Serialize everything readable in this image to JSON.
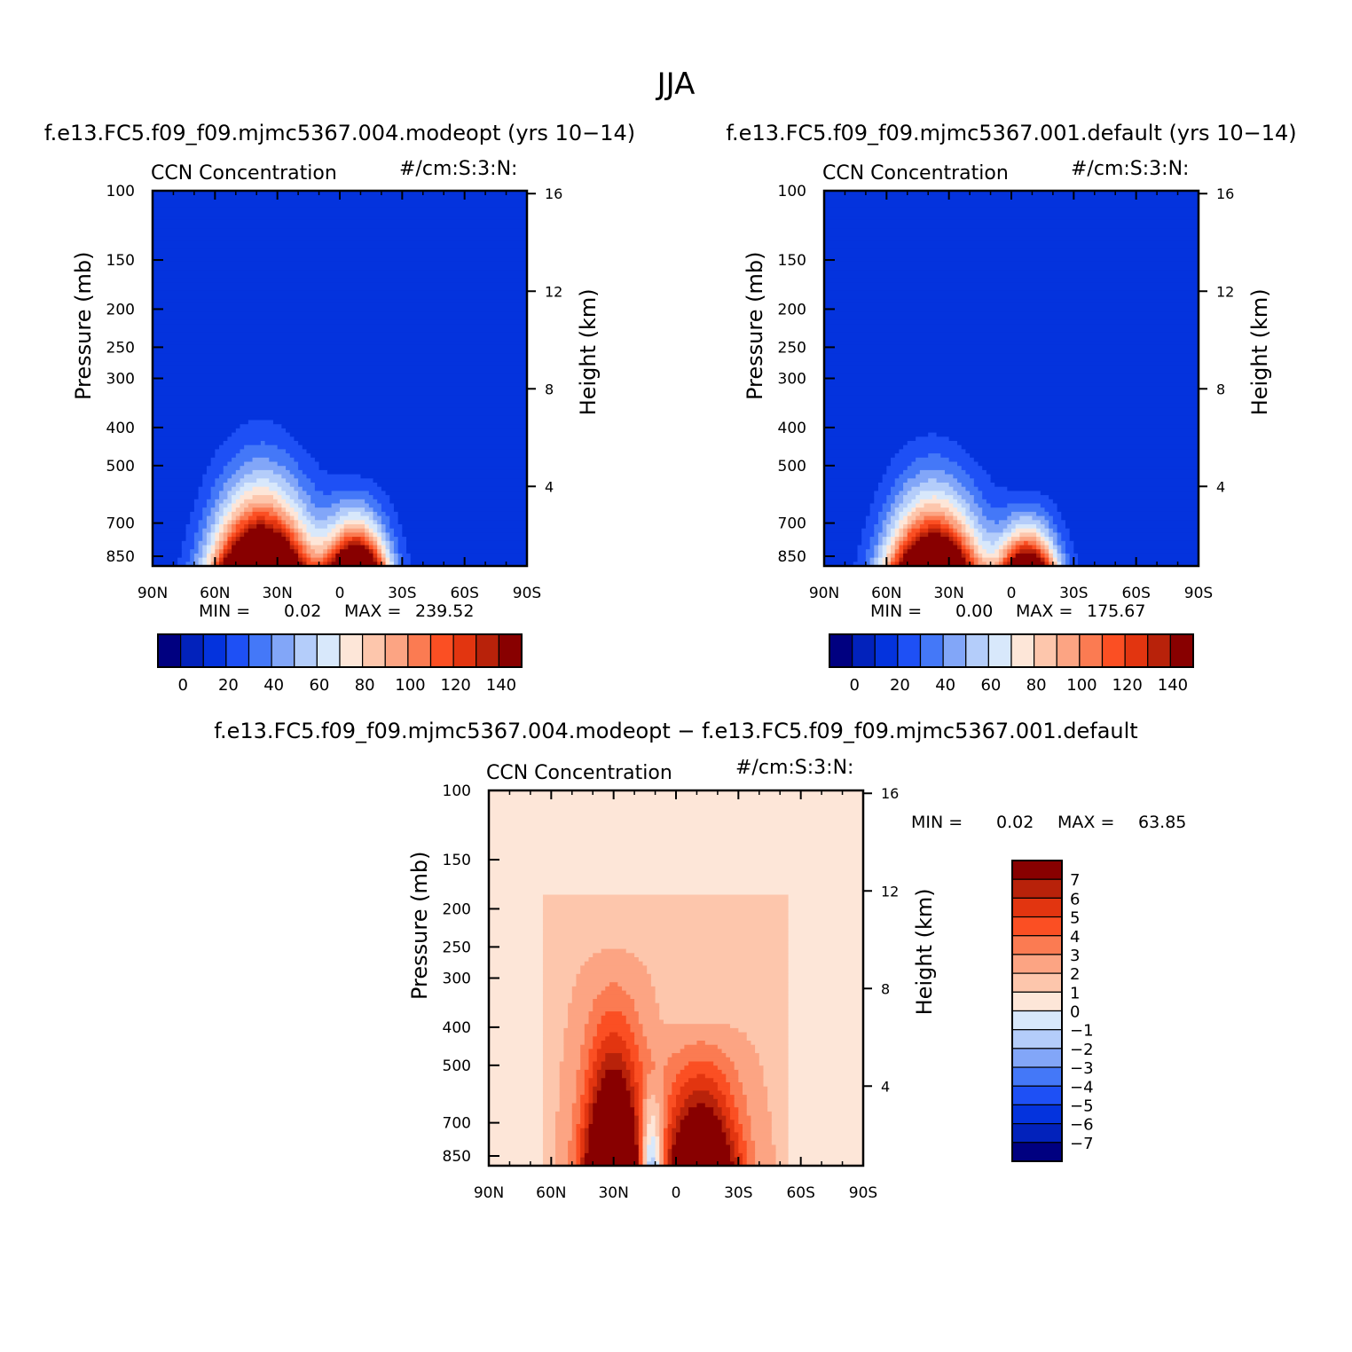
{
  "figure": {
    "season_title": "JJA",
    "panels": [
      {
        "title": "f.e13.FC5.f09_f09.mjmc5367.004.modeopt (yrs 10−14)",
        "variable": "CCN Concentration",
        "units": "#/cm:S:3:N:",
        "min_label": "MIN =",
        "min_value": "0.02",
        "max_label": "MAX =",
        "max_value": "239.52",
        "cb_ticks": [
          "0",
          "20",
          "40",
          "60",
          "80",
          "100",
          "120",
          "140"
        ],
        "peaks": [
          {
            "lat": 38,
            "top_p": 230,
            "amp": 1.0,
            "lat_width": 22
          },
          {
            "lat": -8,
            "top_p": 430,
            "amp": 0.8,
            "lat_width": 14
          }
        ]
      },
      {
        "title": "f.e13.FC5.f09_f09.mjmc5367.001.default (yrs 10−14)",
        "variable": "CCN Concentration",
        "units": "#/cm:S:3:N:",
        "min_label": "MIN =",
        "min_value": "0.00",
        "max_label": "MAX =",
        "max_value": "175.67",
        "cb_ticks": [
          "0",
          "20",
          "40",
          "60",
          "80",
          "100",
          "120",
          "140"
        ],
        "peaks": [
          {
            "lat": 38,
            "top_p": 265,
            "amp": 0.9,
            "lat_width": 21
          },
          {
            "lat": -8,
            "top_p": 490,
            "amp": 0.7,
            "lat_width": 13
          }
        ]
      },
      {
        "title": "f.e13.FC5.f09_f09.mjmc5367.004.modeopt − f.e13.FC5.f09_f09.mjmc5367.001.default",
        "variable": "CCN Concentration",
        "units": "#/cm:S:3:N:",
        "min_label": "MIN =",
        "min_value": "0.02",
        "max_label": "MAX =",
        "max_value": "63.85",
        "cb_ticks": [
          "7",
          "6",
          "5",
          "4",
          "3",
          "2",
          "1",
          "0",
          "−1",
          "−2",
          "−3",
          "−4",
          "−5",
          "−6",
          "−7"
        ]
      }
    ],
    "axes": {
      "x_ticks": [
        "90N",
        "60N",
        "30N",
        "0",
        "30S",
        "60S",
        "90S"
      ],
      "x_values": [
        90,
        60,
        30,
        0,
        -30,
        -60,
        -90
      ],
      "y_label": "Pressure (mb)",
      "y_ticks": [
        "100",
        "150",
        "200",
        "250",
        "300",
        "400",
        "500",
        "700",
        "850"
      ],
      "y_values": [
        100,
        150,
        200,
        250,
        300,
        400,
        500,
        700,
        850
      ],
      "y2_label": "Height (km)",
      "y2_ticks": [
        "16",
        "12",
        "8",
        "4"
      ],
      "y2_values": [
        16,
        12,
        8,
        4
      ]
    }
  },
  "chart_data": [
    {
      "type": "heatmap",
      "title": "f.e13.FC5.f09_f09.mjmc5367.004.modeopt (yrs 10−14)",
      "subtitle": "CCN Concentration  #/cm:S:3:N:",
      "xlabel": "",
      "ylabel": "Pressure (mb)",
      "y2label": "Height (km)",
      "xlim": [
        90,
        -90
      ],
      "ylim": [
        900,
        100
      ],
      "y_scale": "log",
      "contour_levels": [
        -5,
        0,
        10,
        20,
        30,
        40,
        50,
        60,
        70,
        80,
        90,
        100,
        110,
        120,
        130,
        140
      ],
      "colors": [
        "#000080",
        "#0222bb",
        "#0433dd",
        "#1e50f5",
        "#4478f8",
        "#82a6f8",
        "#b4cdfa",
        "#d8e8fb",
        "#fde6d8",
        "#fdc6ac",
        "#fca483",
        "#fb7b52",
        "#fb4f23",
        "#e23510",
        "#b8220a",
        "#880000"
      ],
      "min": 0.02,
      "max": 239.52
    },
    {
      "type": "heatmap",
      "title": "f.e13.FC5.f09_f09.mjmc5367.001.default (yrs 10−14)",
      "subtitle": "CCN Concentration  #/cm:S:3:N:",
      "xlabel": "",
      "ylabel": "Pressure (mb)",
      "y2label": "Height (km)",
      "xlim": [
        90,
        -90
      ],
      "ylim": [
        900,
        100
      ],
      "y_scale": "log",
      "contour_levels": [
        -5,
        0,
        10,
        20,
        30,
        40,
        50,
        60,
        70,
        80,
        90,
        100,
        110,
        120,
        130,
        140
      ],
      "colors": [
        "#000080",
        "#0222bb",
        "#0433dd",
        "#1e50f5",
        "#4478f8",
        "#82a6f8",
        "#b4cdfa",
        "#d8e8fb",
        "#fde6d8",
        "#fdc6ac",
        "#fca483",
        "#fb7b52",
        "#fb4f23",
        "#e23510",
        "#b8220a",
        "#880000"
      ],
      "min": 0.0,
      "max": 175.67
    },
    {
      "type": "heatmap",
      "title": "f.e13.FC5.f09_f09.mjmc5367.004.modeopt − f.e13.FC5.f09_f09.mjmc5367.001.default",
      "subtitle": "CCN Concentration  #/cm:S:3:N:",
      "xlabel": "",
      "ylabel": "Pressure (mb)",
      "y2label": "Height (km)",
      "xlim": [
        90,
        -90
      ],
      "ylim": [
        900,
        100
      ],
      "y_scale": "log",
      "contour_levels": [
        -7,
        -6,
        -5,
        -4,
        -3,
        -2,
        -1,
        0,
        1,
        2,
        3,
        4,
        5,
        6,
        7
      ],
      "colors": [
        "#000080",
        "#0222bb",
        "#0433dd",
        "#1e50f5",
        "#4478f8",
        "#82a6f8",
        "#b4cdfa",
        "#d8e8fb",
        "#fde6d8",
        "#fdc6ac",
        "#fca483",
        "#fb7b52",
        "#fb4f23",
        "#e23510",
        "#b8220a",
        "#880000"
      ],
      "min": 0.02,
      "max": 63.85
    }
  ]
}
